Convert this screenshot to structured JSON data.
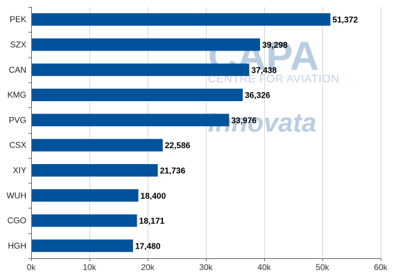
{
  "chart_data": {
    "type": "bar",
    "orientation": "horizontal",
    "categories": [
      "PEK",
      "SZX",
      "CAN",
      "KMG",
      "PVG",
      "CSX",
      "XIY",
      "WUH",
      "CGO",
      "HGH"
    ],
    "values": [
      51372,
      39298,
      37438,
      36326,
      33976,
      22586,
      21736,
      18400,
      18171,
      17480
    ],
    "value_labels": [
      "51,372",
      "39,298",
      "37,438",
      "36,326",
      "33,976",
      "22,586",
      "21,736",
      "18,400",
      "18,171",
      "17,480"
    ],
    "x_ticks": [
      0,
      10000,
      20000,
      30000,
      40000,
      50000,
      60000
    ],
    "x_tick_labels": [
      "0k",
      "10k",
      "20k",
      "30k",
      "40k",
      "50k",
      "60k"
    ],
    "xlim": [
      0,
      60000
    ],
    "grid": true,
    "bar_color": "#00529b",
    "title": "",
    "xlabel": "",
    "ylabel": ""
  },
  "watermark": {
    "brand": "CAPA",
    "tagline": "CENTRE FOR AVIATION",
    "partner": "Innovata"
  }
}
